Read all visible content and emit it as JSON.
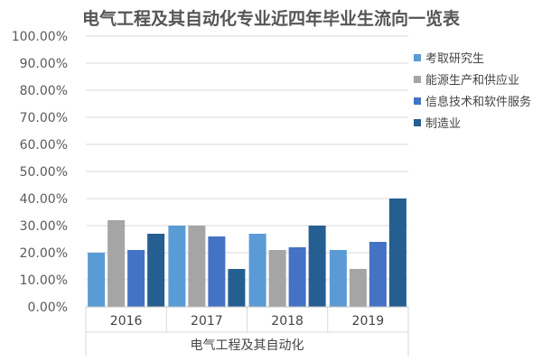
{
  "chart_data": {
    "type": "bar",
    "title": "电气工程及其自动化专业近四年毕业生流向一览表",
    "categories": [
      "2016",
      "2017",
      "2018",
      "2019"
    ],
    "group_label": "电气工程及其自动化",
    "ylim": [
      0,
      100
    ],
    "y_ticks": [
      "0.00%",
      "10.00%",
      "20.00%",
      "30.00%",
      "40.00%",
      "50.00%",
      "60.00%",
      "70.00%",
      "80.00%",
      "90.00%",
      "100.00%"
    ],
    "grid": true,
    "legend_position": "right",
    "series": [
      {
        "name": "考取研究生",
        "color": "#5b9bd5",
        "values": [
          20,
          30,
          27,
          21
        ]
      },
      {
        "name": "能源生产和供应业",
        "color": "#a5a5a5",
        "values": [
          32,
          30,
          21,
          14
        ]
      },
      {
        "name": "信息技术和软件服务",
        "color": "#4472c4",
        "values": [
          21,
          26,
          22,
          24
        ]
      },
      {
        "name": "制造业",
        "color": "#255e91",
        "values": [
          27,
          14,
          30,
          40
        ]
      }
    ]
  }
}
